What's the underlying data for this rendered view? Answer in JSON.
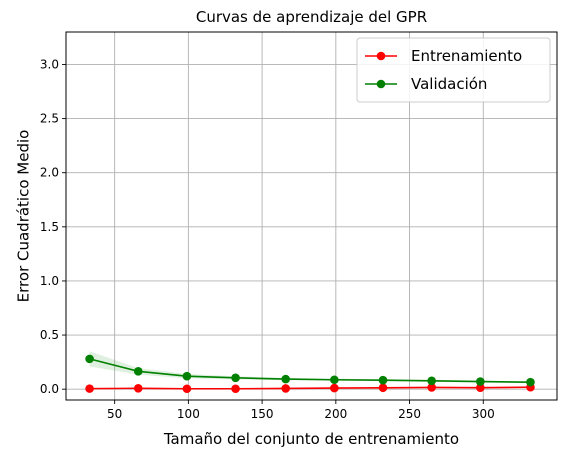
{
  "chart_data": {
    "type": "line",
    "title": "Curvas de aprendizaje del GPR",
    "xlabel": "Tamaño del conjunto de entrenamiento",
    "ylabel": "Error Cuadrático Medio",
    "xlim": [
      17,
      350
    ],
    "ylim": [
      -0.1,
      3.3
    ],
    "xticks": [
      50,
      100,
      150,
      200,
      250,
      300
    ],
    "yticks": [
      0.0,
      0.5,
      1.0,
      1.5,
      2.0,
      2.5,
      3.0
    ],
    "xtick_labels": [
      "50",
      "100",
      "150",
      "200",
      "250",
      "300"
    ],
    "ytick_labels": [
      "0.0",
      "0.5",
      "1.0",
      "1.5",
      "2.0",
      "2.5",
      "3.0"
    ],
    "grid": true,
    "legend_position": "top-right",
    "x": [
      33,
      66,
      99,
      132,
      166,
      199,
      232,
      265,
      298,
      332
    ],
    "series": [
      {
        "name": "Entrenamiento",
        "color": "#ff0000",
        "values": [
          0.005,
          0.008,
          0.004,
          0.004,
          0.007,
          0.01,
          0.013,
          0.016,
          0.014,
          0.018
        ],
        "band_lower": [
          0.0,
          0.002,
          0.0,
          0.0,
          0.002,
          0.005,
          0.008,
          0.01,
          0.009,
          0.012
        ],
        "band_upper": [
          0.012,
          0.014,
          0.009,
          0.009,
          0.012,
          0.015,
          0.018,
          0.022,
          0.02,
          0.024
        ]
      },
      {
        "name": "Validación",
        "color": "#008000",
        "values": [
          0.28,
          0.165,
          0.12,
          0.105,
          0.093,
          0.087,
          0.083,
          0.077,
          0.07,
          0.065
        ],
        "band_lower": [
          0.21,
          0.135,
          0.1,
          0.09,
          0.082,
          0.078,
          0.074,
          0.068,
          0.062,
          0.058
        ],
        "band_upper": [
          0.35,
          0.195,
          0.14,
          0.12,
          0.104,
          0.096,
          0.092,
          0.086,
          0.078,
          0.072
        ]
      }
    ]
  }
}
